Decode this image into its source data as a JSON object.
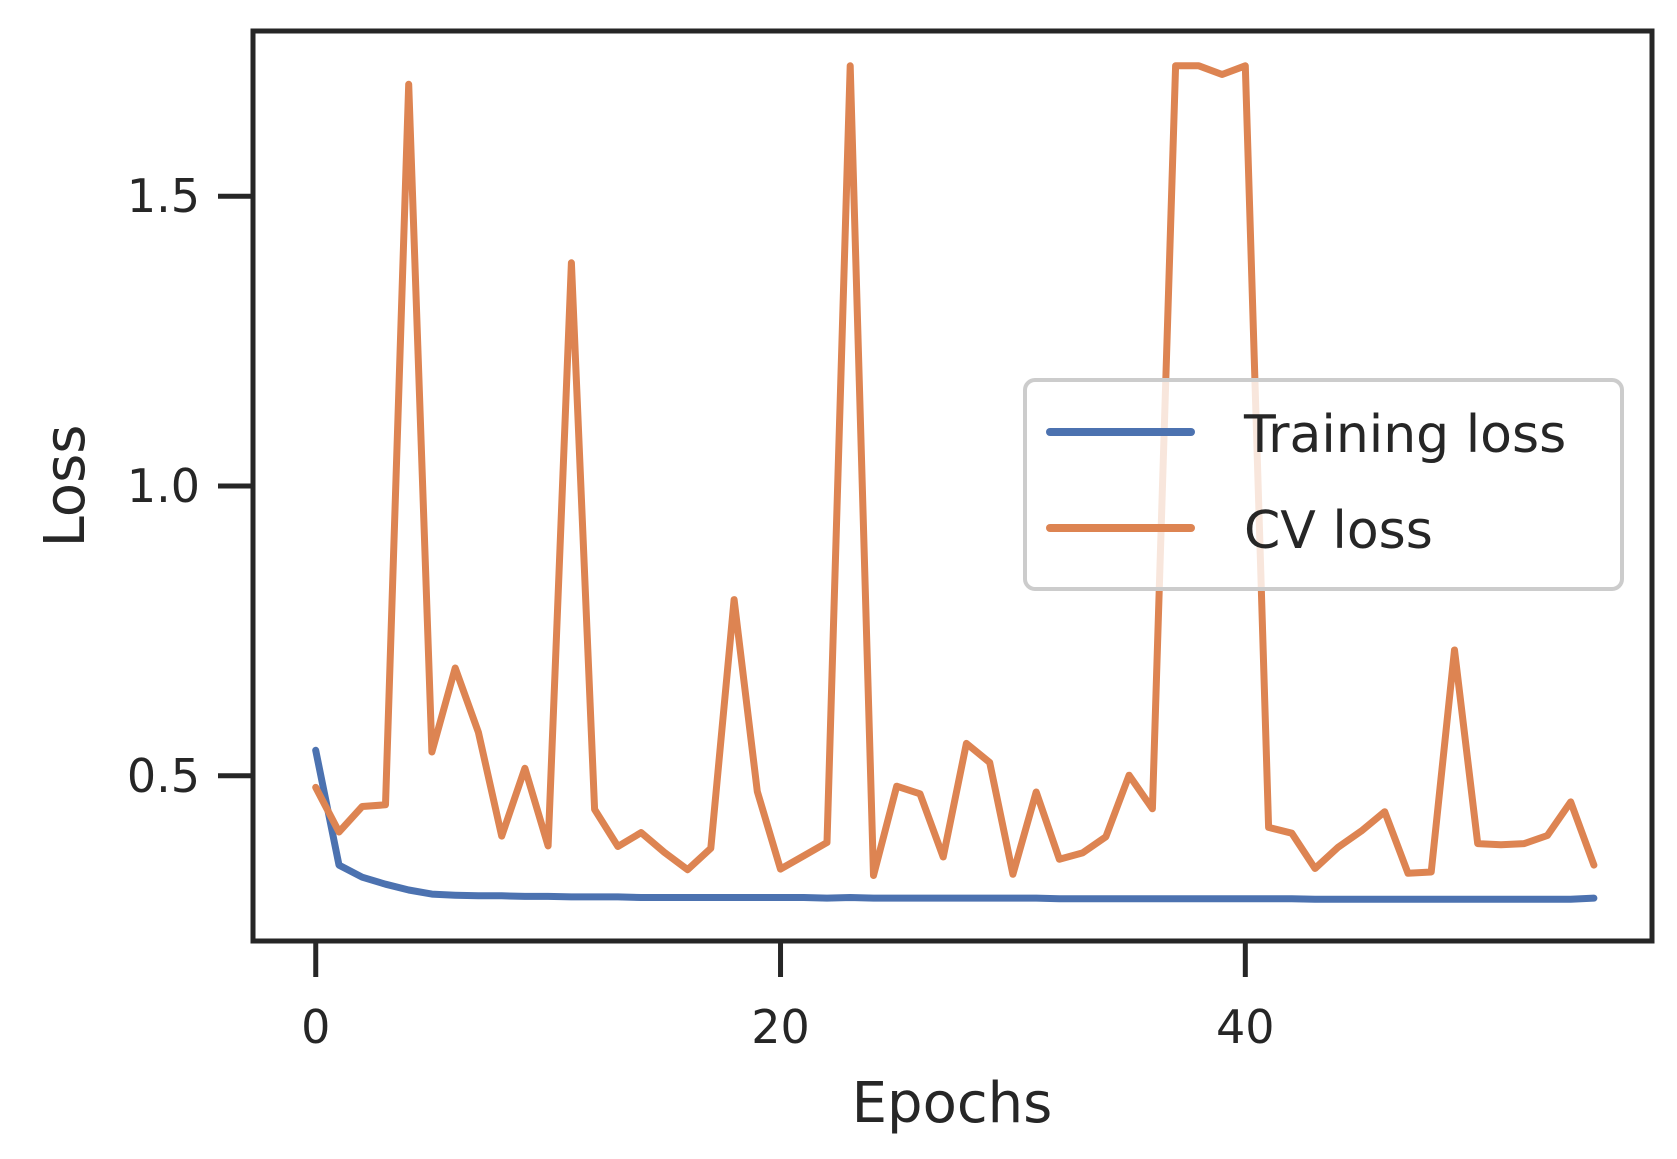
{
  "chart_data": {
    "type": "line",
    "title": "",
    "xlabel": "Epochs",
    "ylabel": "Loss",
    "xlim": [
      -2.7,
      57.5
    ],
    "ylim": [
      0.215,
      1.785
    ],
    "xticks": [
      0,
      20,
      40
    ],
    "xtick_labels": [
      "0",
      "20",
      "40"
    ],
    "yticks": [
      0.5,
      1.0,
      1.5
    ],
    "ytick_labels": [
      "0.5",
      "1.0",
      "1.5"
    ],
    "grid": false,
    "legend_position": "center-right",
    "series": [
      {
        "name": "Training loss",
        "color": "#4c72b0",
        "x": [
          0,
          1,
          2,
          3,
          4,
          5,
          6,
          7,
          8,
          9,
          10,
          11,
          12,
          13,
          14,
          15,
          16,
          17,
          18,
          19,
          20,
          21,
          22,
          23,
          24,
          25,
          26,
          27,
          28,
          29,
          30,
          31,
          32,
          33,
          34,
          35,
          36,
          37,
          38,
          39,
          40,
          41,
          42,
          43,
          44,
          45,
          46,
          47,
          48,
          49,
          50,
          51,
          52,
          53,
          54,
          55
        ],
        "values": [
          0.544,
          0.346,
          0.325,
          0.313,
          0.303,
          0.296,
          0.294,
          0.293,
          0.293,
          0.292,
          0.292,
          0.291,
          0.291,
          0.291,
          0.29,
          0.29,
          0.29,
          0.29,
          0.29,
          0.29,
          0.29,
          0.29,
          0.289,
          0.29,
          0.289,
          0.289,
          0.289,
          0.289,
          0.289,
          0.289,
          0.289,
          0.289,
          0.288,
          0.288,
          0.288,
          0.288,
          0.288,
          0.288,
          0.288,
          0.288,
          0.288,
          0.288,
          0.288,
          0.287,
          0.287,
          0.287,
          0.287,
          0.287,
          0.287,
          0.287,
          0.287,
          0.287,
          0.287,
          0.287,
          0.287,
          0.289
        ]
      },
      {
        "name": "CV loss",
        "color": "#dd8452",
        "x": [
          0,
          1,
          2,
          3,
          4,
          5,
          6,
          7,
          8,
          9,
          10,
          11,
          12,
          13,
          14,
          15,
          16,
          17,
          18,
          19,
          20,
          21,
          22,
          23,
          24,
          25,
          26,
          27,
          28,
          29,
          30,
          31,
          32,
          33,
          34,
          35,
          36,
          37,
          38,
          39,
          40,
          41,
          42,
          43,
          44,
          45,
          46,
          47,
          48,
          49,
          50,
          51,
          52,
          53,
          54,
          55
        ],
        "values": [
          0.48,
          0.403,
          0.447,
          0.45,
          1.693,
          0.541,
          0.686,
          0.575,
          0.396,
          0.513,
          0.379,
          1.385,
          0.442,
          0.378,
          0.402,
          0.368,
          0.338,
          0.375,
          0.804,
          0.473,
          0.339,
          0.362,
          0.385,
          1.725,
          0.328,
          0.482,
          0.469,
          0.36,
          0.556,
          0.523,
          0.33,
          0.472,
          0.356,
          0.367,
          0.395,
          0.501,
          0.443,
          1.725,
          1.725,
          1.71,
          1.725,
          0.411,
          0.401,
          0.34,
          0.377,
          0.405,
          0.438,
          0.332,
          0.334,
          0.717,
          0.383,
          0.381,
          0.383,
          0.397,
          0.455,
          0.346
        ]
      }
    ]
  }
}
